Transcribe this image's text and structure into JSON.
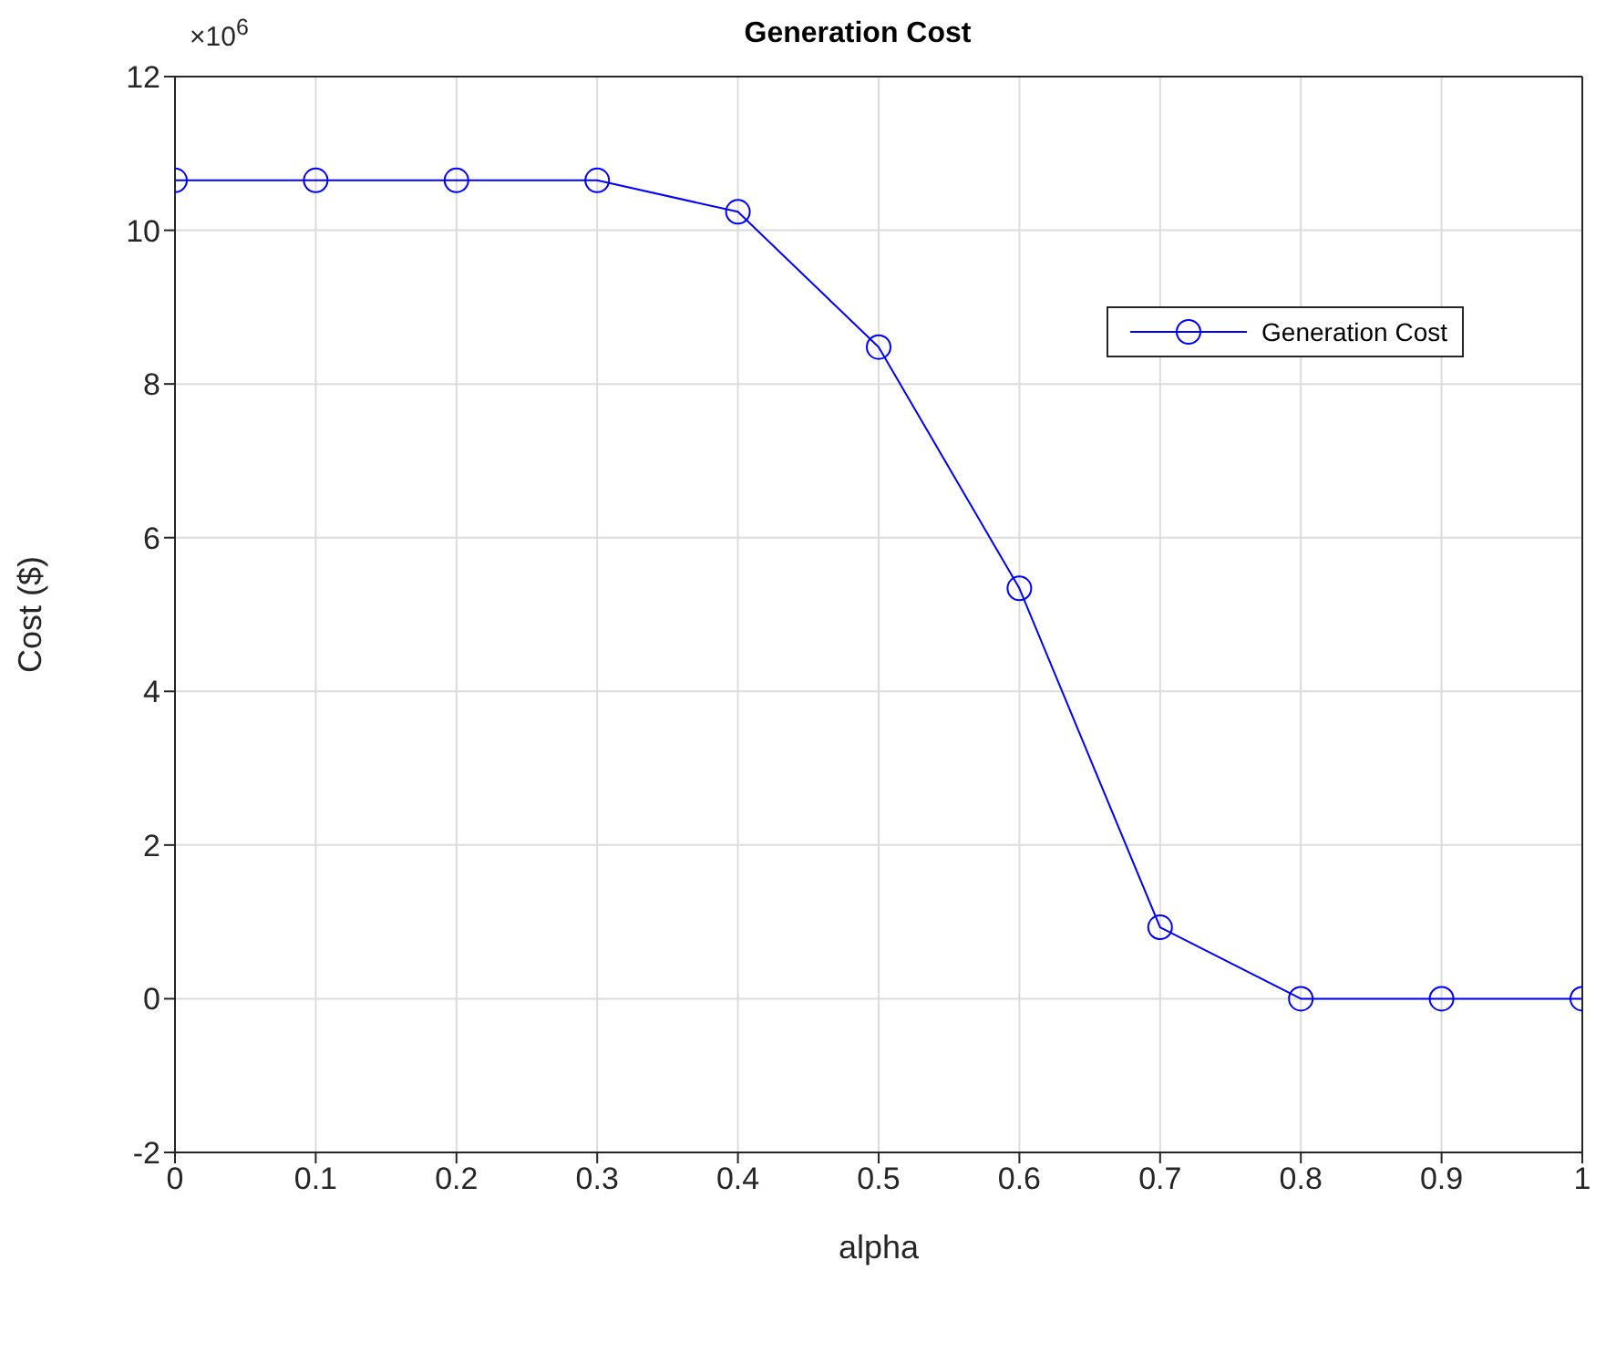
{
  "chart_data": {
    "type": "line",
    "title": "Generation Cost",
    "xlabel": "alpha",
    "ylabel": "Cost ($)",
    "annotations": [
      "×10$^{6}$"
    ],
    "x": [
      0,
      0.1,
      0.2,
      0.3,
      0.4,
      0.5,
      0.6,
      0.7,
      0.8,
      0.9,
      1
    ],
    "series": [
      {
        "name": "Generation Cost",
        "color": "#0000ff",
        "values": [
          10.65,
          10.65,
          10.65,
          10.65,
          10.24,
          8.48,
          5.34,
          0.93,
          0,
          0,
          0
        ]
      }
    ],
    "xlim": [
      0,
      1
    ],
    "xticks": [
      0,
      0.1,
      0.2,
      0.3,
      0.4,
      0.5,
      0.6,
      0.7,
      0.8,
      0.9,
      1
    ],
    "ylim": [
      -2,
      12
    ],
    "yticks": [
      -2,
      0,
      2,
      4,
      6,
      8,
      10,
      12
    ],
    "grid": true,
    "legend": "top right",
    "marker": "circle",
    "line_style": "solid"
  }
}
